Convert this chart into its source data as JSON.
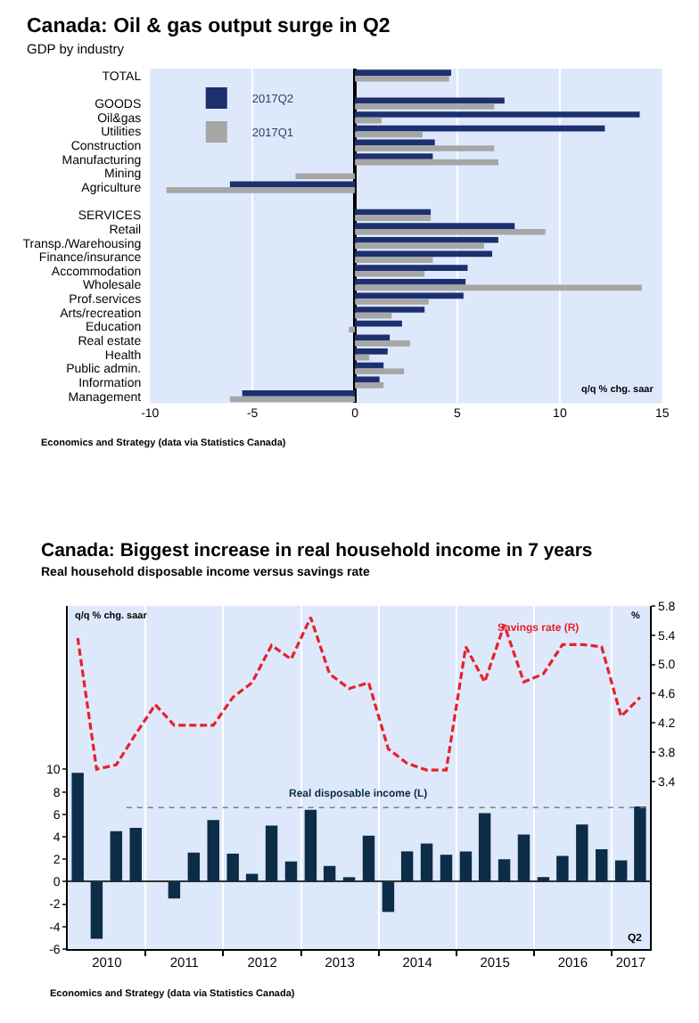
{
  "chart_data": [
    {
      "type": "bar",
      "orientation": "horizontal",
      "title": "Canada: Oil & gas output surge in Q2",
      "subtitle": "GDP by industry",
      "xlabel": "q/q % chg. saar",
      "categories": [
        "TOTAL",
        null,
        "GOODS",
        "Oil&gas",
        "Utilities",
        "Construction",
        "Manufacturing",
        "Mining",
        "Agriculture",
        null,
        "SERVICES",
        "Retail",
        "Transp./Warehousing",
        "Finance/insurance",
        "Accommodation",
        "Wholesale",
        "Prof.services",
        "Arts/recreation",
        "Education",
        "Real estate",
        "Health",
        "Public admin.",
        "Information",
        "Management"
      ],
      "series": [
        {
          "name": "2017Q2",
          "color": "#1c2f6e",
          "values": [
            4.7,
            null,
            7.3,
            13.9,
            12.2,
            3.9,
            3.8,
            0.0,
            -6.1,
            null,
            3.7,
            7.8,
            7.0,
            6.7,
            5.5,
            5.4,
            5.3,
            3.4,
            2.3,
            1.7,
            1.6,
            1.4,
            1.2,
            -5.5
          ]
        },
        {
          "name": "2017Q1",
          "color": "#a6a6a6",
          "values": [
            4.6,
            null,
            6.8,
            1.3,
            3.3,
            6.8,
            7.0,
            -2.9,
            -9.2,
            null,
            3.7,
            9.3,
            6.3,
            3.8,
            3.4,
            14.0,
            3.6,
            1.8,
            -0.3,
            2.7,
            0.7,
            2.4,
            1.4,
            -6.1
          ]
        }
      ],
      "xlim": [
        -10,
        15
      ],
      "xticks": [
        -10,
        -5,
        0,
        5,
        10,
        15
      ],
      "grid": "x",
      "legend": "top left",
      "annotations": [
        "Economics and Strategy (data via Statistics Canada)"
      ]
    },
    {
      "type": "bar",
      "title": "Canada: Biggest increase in real household income in 7 years",
      "subtitle": "Real household disposable income versus savings rate",
      "ylabel": "q/q % chg. saar",
      "y2label": "%",
      "x": [
        "2010-02-15",
        "2010-05-15",
        "2010-08-15",
        "2010-11-15",
        "2011-02-15",
        "2011-05-15",
        "2011-08-15",
        "2011-11-15",
        "2012-02-15",
        "2012-05-15",
        "2012-08-15",
        "2012-11-15",
        "2013-02-15",
        "2013-05-15",
        "2013-08-15",
        "2013-11-15",
        "2014-02-15",
        "2014-05-15",
        "2014-08-15",
        "2014-11-15",
        "2015-02-15",
        "2015-05-15",
        "2015-08-15",
        "2015-11-15",
        "2016-02-15",
        "2016-05-15",
        "2016-08-15",
        "2016-11-15",
        "2017-02-15",
        "2017-05-15"
      ],
      "series": [
        {
          "name": "Real disposable income (L)",
          "type": "bar",
          "color": "#0d2c47",
          "values": [
            9.7,
            -5.1,
            4.5,
            4.8,
            0.0,
            -1.5,
            2.6,
            5.5,
            2.5,
            0.7,
            5.0,
            1.8,
            6.4,
            1.4,
            0.4,
            4.1,
            -2.7,
            2.7,
            3.4,
            2.4,
            2.7,
            6.1,
            2.0,
            4.2,
            0.4,
            2.3,
            5.1,
            2.9,
            1.9,
            6.7
          ]
        },
        {
          "name": "Savings rate (R)",
          "type": "line",
          "axis": "y2",
          "color": "#e8202a",
          "line_style": "dashed",
          "values": [
            5.36,
            3.57,
            3.63,
            4.05,
            4.45,
            4.17,
            4.17,
            4.17,
            4.55,
            4.75,
            5.26,
            5.07,
            5.64,
            4.87,
            4.67,
            4.75,
            3.85,
            3.65,
            3.56,
            3.56,
            5.24,
            4.76,
            5.54,
            4.76,
            4.87,
            5.27,
            5.27,
            5.24,
            4.29,
            4.55
          ]
        }
      ],
      "xlim": [
        "2010-01-01",
        "2017-07-01"
      ],
      "xticks": [
        {
          "value": "2010-07-02",
          "label": "2010"
        },
        {
          "value": "2011-01-01",
          "label": null
        },
        {
          "value": "2011-07-02",
          "label": "2011"
        },
        {
          "value": "2012-01-01",
          "label": null
        },
        {
          "value": "2012-07-02",
          "label": "2012"
        },
        {
          "value": "2013-01-01",
          "label": null
        },
        {
          "value": "2013-07-02",
          "label": "2013"
        },
        {
          "value": "2014-01-01",
          "label": null
        },
        {
          "value": "2014-07-02",
          "label": "2014"
        },
        {
          "value": "2015-01-01",
          "label": null
        },
        {
          "value": "2015-07-02",
          "label": "2015"
        },
        {
          "value": "2016-01-01",
          "label": null
        },
        {
          "value": "2016-07-02",
          "label": "2016"
        },
        {
          "value": "2017-01-01",
          "label": null
        },
        {
          "value": "2017-04-01",
          "label": "2017"
        }
      ],
      "ylim": [
        -6,
        24.6
      ],
      "yticks": [
        -6,
        -4,
        -2,
        0,
        2,
        4,
        6,
        8,
        10
      ],
      "y2lim": [
        1.12,
        5.8
      ],
      "y2ticks": [
        3.4,
        3.8,
        4.2,
        4.6,
        {
          "value": 5.0,
          "label": "5.0"
        },
        5.4,
        5.8
      ],
      "grid": "x",
      "ref_lines": [
        {
          "axis": "y",
          "value": 6.6,
          "color": "#7f7f7f",
          "line_style": "dotted"
        }
      ],
      "annotations": [
        "Q2",
        "Economics and Strategy (data via Statistics Canada)"
      ]
    }
  ]
}
